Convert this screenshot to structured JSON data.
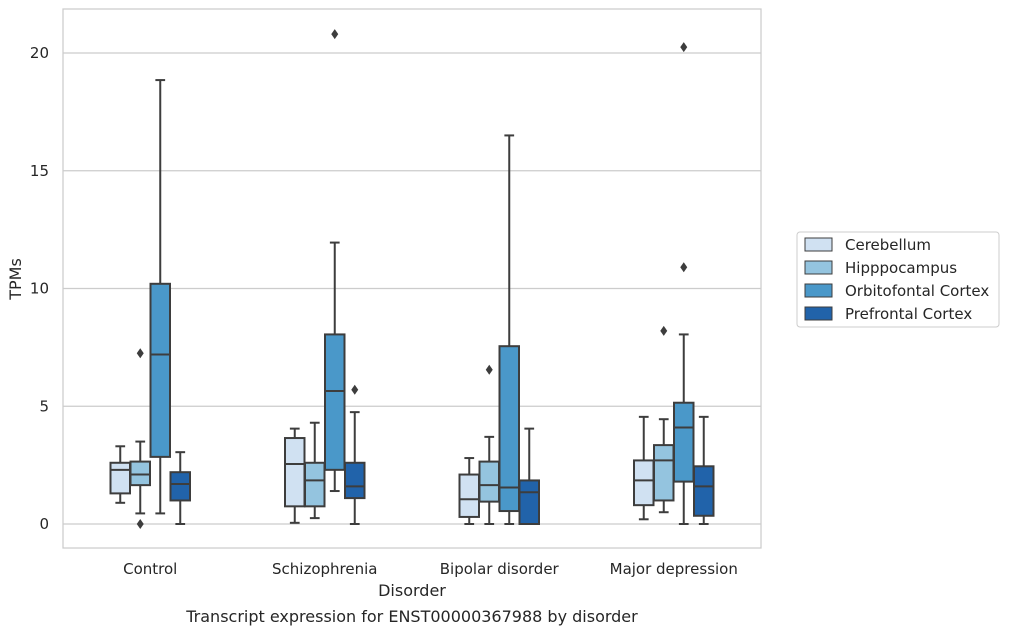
{
  "caption": "Transcript expression for ENST00000367988 by disorder",
  "chart_data": {
    "type": "box",
    "title": "",
    "xlabel": "Disorder",
    "ylabel": "TPMs",
    "ylim": [
      -1,
      21.9
    ],
    "yticks": [
      0,
      5,
      10,
      15,
      20
    ],
    "grid": "horizontal",
    "legend_position": "right",
    "categories": [
      "Control",
      "Schizophrenia",
      "Bipolar disorder",
      "Major depression"
    ],
    "series": [
      {
        "name": "Cerebellum",
        "color": "#d0e1f2",
        "boxes": [
          {
            "whisker_low": 0.9,
            "q1": 1.3,
            "median": 2.3,
            "q3": 2.6,
            "whisker_high": 3.3,
            "outliers": []
          },
          {
            "whisker_low": 0.05,
            "q1": 0.75,
            "median": 2.55,
            "q3": 3.65,
            "whisker_high": 4.05,
            "outliers": []
          },
          {
            "whisker_low": 0.0,
            "q1": 0.3,
            "median": 1.05,
            "q3": 2.1,
            "whisker_high": 2.8,
            "outliers": []
          },
          {
            "whisker_low": 0.2,
            "q1": 0.8,
            "median": 1.85,
            "q3": 2.7,
            "whisker_high": 4.55,
            "outliers": []
          }
        ]
      },
      {
        "name": "Hipppocampus",
        "color": "#94c4df",
        "boxes": [
          {
            "whisker_low": 0.45,
            "q1": 1.65,
            "median": 2.1,
            "q3": 2.65,
            "whisker_high": 3.5,
            "outliers": [
              0.0,
              7.25
            ]
          },
          {
            "whisker_low": 0.25,
            "q1": 0.75,
            "median": 1.85,
            "q3": 2.6,
            "whisker_high": 4.3,
            "outliers": []
          },
          {
            "whisker_low": 0.0,
            "q1": 0.95,
            "median": 1.65,
            "q3": 2.65,
            "whisker_high": 3.7,
            "outliers": [
              6.55
            ]
          },
          {
            "whisker_low": 0.5,
            "q1": 1.0,
            "median": 2.7,
            "q3": 3.35,
            "whisker_high": 4.45,
            "outliers": [
              8.2
            ]
          }
        ]
      },
      {
        "name": "Orbitofontal Cortex",
        "color": "#4a98c9",
        "boxes": [
          {
            "whisker_low": 0.45,
            "q1": 2.85,
            "median": 7.2,
            "q3": 10.2,
            "whisker_high": 18.85,
            "outliers": []
          },
          {
            "whisker_low": 1.4,
            "q1": 2.3,
            "median": 5.65,
            "q3": 8.05,
            "whisker_high": 11.95,
            "outliers": [
              20.8
            ]
          },
          {
            "whisker_low": 0.0,
            "q1": 0.55,
            "median": 1.55,
            "q3": 7.55,
            "whisker_high": 16.5,
            "outliers": []
          },
          {
            "whisker_low": 0.0,
            "q1": 1.8,
            "median": 4.1,
            "q3": 5.15,
            "whisker_high": 8.05,
            "outliers": [
              10.9,
              20.25
            ]
          }
        ]
      },
      {
        "name": "Prefrontal Cortex",
        "color": "#2163aa",
        "boxes": [
          {
            "whisker_low": 0.0,
            "q1": 1.0,
            "median": 1.7,
            "q3": 2.2,
            "whisker_high": 3.05,
            "outliers": []
          },
          {
            "whisker_low": 0.0,
            "q1": 1.1,
            "median": 1.6,
            "q3": 2.6,
            "whisker_high": 4.75,
            "outliers": [
              5.7
            ]
          },
          {
            "whisker_low": 0.0,
            "q1": 0.0,
            "median": 1.35,
            "q3": 1.85,
            "whisker_high": 4.05,
            "outliers": []
          },
          {
            "whisker_low": 0.0,
            "q1": 0.35,
            "median": 1.6,
            "q3": 2.45,
            "whisker_high": 4.55,
            "outliers": []
          }
        ]
      }
    ]
  }
}
